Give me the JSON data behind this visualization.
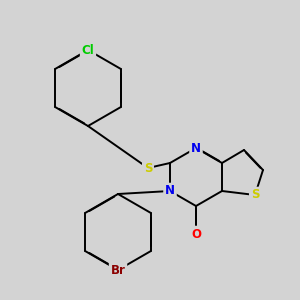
{
  "bg_color": "#d3d3d3",
  "atom_colors": {
    "Cl": "#00cc00",
    "S_thioether": "#cccc00",
    "S_ring": "#cccc00",
    "N": "#0000ee",
    "O": "#ff0000",
    "Br": "#8b0000",
    "C": "#000000"
  },
  "bond_width": 1.4,
  "font_size": 8.5,
  "dbo": 0.055
}
